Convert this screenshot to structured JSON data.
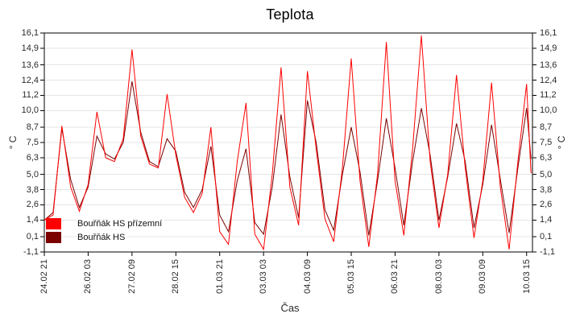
{
  "colors": {
    "background": "#ffffff",
    "axis": "#000000",
    "grid": "#e4e4e4",
    "tick_text": "#2a2a2a",
    "series_red": "#ff0000",
    "series_dark_red": "#7b0000"
  },
  "chart_data": {
    "type": "line",
    "title": "Teplota",
    "xlabel": "Čas",
    "ylabel_left": "° C",
    "ylabel_right": "° C",
    "grid": "horizontal",
    "legend_position": "bottom-left-inside",
    "ylim": [
      -1.1,
      16.1
    ],
    "xlim": [
      0,
      334
    ],
    "x_unit": "hours_from_start",
    "x_start": "24.02 21:00",
    "y_ticks": [
      {
        "value": 16.1,
        "label": "16,1"
      },
      {
        "value": 14.9,
        "label": "14,9"
      },
      {
        "value": 13.6,
        "label": "13,6"
      },
      {
        "value": 12.4,
        "label": "12,4"
      },
      {
        "value": 11.2,
        "label": "11,2"
      },
      {
        "value": 10.0,
        "label": "10,0"
      },
      {
        "value": 8.7,
        "label": "8,7"
      },
      {
        "value": 7.5,
        "label": "7,5"
      },
      {
        "value": 6.3,
        "label": "6,3"
      },
      {
        "value": 5.0,
        "label": "5,0"
      },
      {
        "value": 3.8,
        "label": "3,8"
      },
      {
        "value": 2.6,
        "label": "2,6"
      },
      {
        "value": 1.4,
        "label": "1,4"
      },
      {
        "value": 0.1,
        "label": "0,1"
      },
      {
        "value": -1.1,
        "label": "-1,1"
      }
    ],
    "x_ticks": [
      {
        "hour": 0,
        "label": "24.02 21"
      },
      {
        "hour": 30,
        "label": "26.02 03"
      },
      {
        "hour": 60,
        "label": "27.02 09"
      },
      {
        "hour": 90,
        "label": "28.02 15"
      },
      {
        "hour": 120,
        "label": "01.03 21"
      },
      {
        "hour": 150,
        "label": "03.03 03"
      },
      {
        "hour": 180,
        "label": "04.03 09"
      },
      {
        "hour": 210,
        "label": "05.03 15"
      },
      {
        "hour": 240,
        "label": "06.03 21"
      },
      {
        "hour": 270,
        "label": "08.03 03"
      },
      {
        "hour": 300,
        "label": "09.03 09"
      },
      {
        "hour": 330,
        "label": "10.03 15"
      }
    ],
    "x": [
      0,
      6,
      12,
      18,
      24,
      30,
      36,
      42,
      48,
      54,
      60,
      66,
      72,
      78,
      84,
      90,
      96,
      102,
      108,
      114,
      120,
      126,
      132,
      138,
      144,
      150,
      156,
      162,
      168,
      174,
      180,
      186,
      192,
      198,
      204,
      210,
      216,
      222,
      228,
      234,
      240,
      246,
      252,
      258,
      264,
      270,
      276,
      282,
      288,
      294,
      300,
      306,
      312,
      318,
      324,
      330,
      333
    ],
    "series": [
      {
        "name": "Bouřňák HS přízemní",
        "color": "#ff0000",
        "values": [
          1.4,
          1.8,
          8.8,
          4.0,
          2.1,
          4.2,
          9.9,
          6.3,
          6.0,
          7.8,
          14.8,
          8.0,
          5.8,
          5.5,
          11.3,
          6.5,
          3.2,
          2.0,
          3.5,
          8.7,
          0.5,
          -0.5,
          6.0,
          10.6,
          0.3,
          -0.9,
          5.0,
          13.4,
          4.0,
          1.0,
          13.1,
          7.0,
          1.5,
          -0.3,
          5.5,
          14.1,
          4.5,
          -0.7,
          5.0,
          15.4,
          4.5,
          0.2,
          7.0,
          15.9,
          6.0,
          0.8,
          5.0,
          12.8,
          5.5,
          0.0,
          4.5,
          12.2,
          4.0,
          -0.9,
          6.0,
          12.1,
          5.1
        ]
      },
      {
        "name": "Bouřňák HS",
        "color": "#7b0000",
        "values": [
          1.4,
          2.0,
          8.6,
          4.6,
          2.4,
          4.0,
          8.0,
          6.6,
          6.2,
          7.5,
          12.3,
          8.3,
          6.0,
          5.6,
          7.8,
          6.8,
          3.6,
          2.4,
          3.8,
          7.2,
          1.8,
          0.5,
          4.5,
          7.0,
          1.2,
          0.3,
          4.0,
          9.7,
          4.8,
          1.6,
          10.8,
          7.5,
          2.2,
          0.6,
          5.0,
          8.7,
          5.2,
          0.2,
          4.5,
          9.4,
          5.5,
          1.0,
          6.0,
          10.2,
          6.5,
          1.4,
          4.8,
          9.0,
          6.0,
          0.8,
          4.2,
          8.9,
          4.6,
          0.4,
          5.5,
          10.2,
          6.2
        ]
      }
    ]
  }
}
